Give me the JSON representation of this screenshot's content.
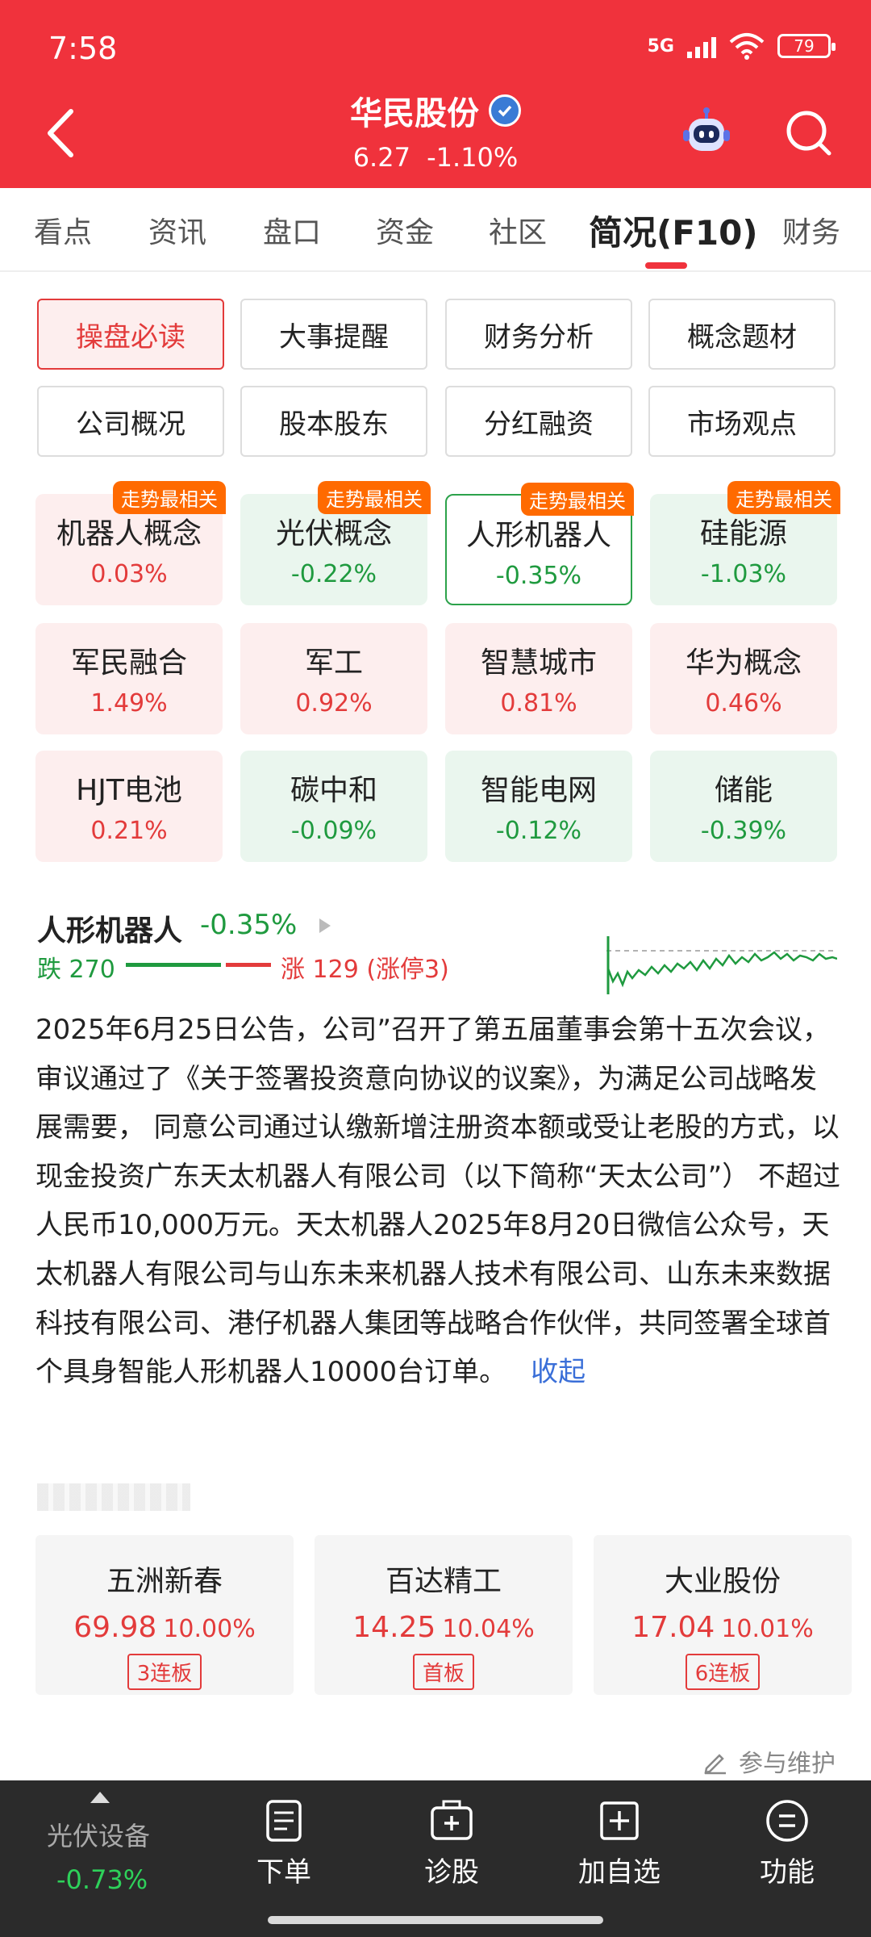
{
  "status_bar": {
    "time": "7:58",
    "network": "5G",
    "battery": "79"
  },
  "header": {
    "stock_name": "华民股份",
    "price": "6.27",
    "change": "-1.10%"
  },
  "tabs": [
    "看点",
    "资讯",
    "盘口",
    "资金",
    "社区",
    "简况(F10)",
    "财务"
  ],
  "active_tab": "简况(F10)",
  "sub_nav": [
    "操盘必读",
    "大事提醒",
    "财务分析",
    "概念题材",
    "公司概况",
    "股本股东",
    "分红融资",
    "市场观点"
  ],
  "concepts": [
    {
      "name": "机器人概念",
      "pct": "0.03%",
      "badge": "走势最相关",
      "trend": "up"
    },
    {
      "name": "光伏概念",
      "pct": "-0.22%",
      "badge": "走势最相关",
      "trend": "down"
    },
    {
      "name": "人形机器人",
      "pct": "-0.35%",
      "badge": "走势最相关",
      "trend": "selected"
    },
    {
      "name": "硅能源",
      "pct": "-1.03%",
      "badge": "走势最相关",
      "trend": "down"
    },
    {
      "name": "军民融合",
      "pct": "1.49%",
      "trend": "up"
    },
    {
      "name": "军工",
      "pct": "0.92%",
      "trend": "up"
    },
    {
      "name": "智慧城市",
      "pct": "0.81%",
      "trend": "up"
    },
    {
      "name": "华为概念",
      "pct": "0.46%",
      "trend": "up"
    },
    {
      "name": "HJT电池",
      "pct": "0.21%",
      "trend": "up"
    },
    {
      "name": "碳中和",
      "pct": "-0.09%",
      "trend": "down"
    },
    {
      "name": "智能电网",
      "pct": "-0.12%",
      "trend": "down"
    },
    {
      "name": "储能",
      "pct": "-0.39%",
      "trend": "down"
    }
  ],
  "concept_detail": {
    "name": "人形机器人",
    "pct": "-0.35%",
    "fall_text": "跌 270",
    "rise_text": "涨 129 (涨停3)",
    "description": "2025年6月25日公告，公司”召开了第五届董事会第十五次会议， 审议通过了《关于签署投资意向协议的议案》，为满足公司战略发展需要， 同意公司通过认缴新增注册资本额或受让老股的方式，以现金投资广东天太机器人有限公司（以下简称“天太公司”） 不超过人民币10,000万元。天太机器人2025年8月20日微信公众号，天太机器人有限公司与山东未来机器人技术有限公司、山东未来数据科技有限公司、港仔机器人集团等战略合作伙伴，共同签署全球首个具身智能人形机器人10000台订单。",
    "collapse_label": "收起"
  },
  "leaders": [
    {
      "name": "五洲新春",
      "price": "69.98",
      "change": "10.00%",
      "tag": "3连板"
    },
    {
      "name": "百达精工",
      "price": "14.25",
      "change": "10.04%",
      "tag": "首板"
    },
    {
      "name": "大业股份",
      "price": "17.04",
      "change": "10.01%",
      "tag": "6连板"
    }
  ],
  "maintain_label": "参与维护",
  "bottom_bar": {
    "sector_name": "光伏设备",
    "sector_pct": "-0.73%",
    "items": [
      "下单",
      "诊股",
      "加自选",
      "功能"
    ]
  },
  "colors": {
    "brand_red": "#f0323c",
    "up_red": "#e33b3b",
    "down_green": "#1f9a3f",
    "link_blue": "#3a6fd8"
  }
}
